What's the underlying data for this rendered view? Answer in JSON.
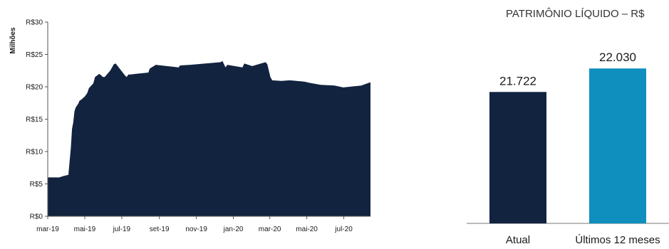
{
  "chart_data": [
    {
      "type": "area",
      "ylabel": "Milhões",
      "ylim": [
        0,
        30
      ],
      "y_ticks": [
        0,
        5,
        10,
        15,
        20,
        25,
        30
      ],
      "y_tick_labels": [
        "R$0",
        "R$5",
        "R$10",
        "R$15",
        "R$20",
        "R$25",
        "R$30"
      ],
      "x_ticks": [
        "2019-03-01",
        "2019-05-01",
        "2019-07-01",
        "2019-09-01",
        "2019-11-01",
        "2020-01-01",
        "2020-03-01",
        "2020-05-01",
        "2020-07-01"
      ],
      "x_tick_labels": [
        "mar-19",
        "mai-19",
        "jul-19",
        "set-19",
        "nov-19",
        "jan-20",
        "mar-20",
        "mai-20",
        "jul-20"
      ],
      "xlim": [
        "2019-03-01",
        "2020-08-14"
      ],
      "color": "#12233f",
      "grid": false,
      "series": [
        {
          "x": [
            "2019-03-01",
            "2019-03-20",
            "2019-03-26",
            "2019-04-04",
            "2019-04-06",
            "2019-04-08",
            "2019-04-10",
            "2019-04-12",
            "2019-04-13",
            "2019-04-14",
            "2019-04-16",
            "2019-04-19",
            "2019-04-21",
            "2019-04-22",
            "2019-04-25",
            "2019-05-01",
            "2019-05-05",
            "2019-05-08",
            "2019-05-15",
            "2019-05-18",
            "2019-05-25",
            "2019-05-31",
            "2019-06-03",
            "2019-06-12",
            "2019-06-18",
            "2019-06-21",
            "2019-07-06",
            "2019-07-09",
            "2019-07-12",
            "2019-07-15",
            "2019-07-25",
            "2019-08-14",
            "2019-08-16",
            "2019-08-26",
            "2019-10-03",
            "2019-10-05",
            "2019-10-22",
            "2019-12-11",
            "2019-12-14",
            "2019-12-19",
            "2019-12-22",
            "2020-01-16",
            "2020-01-19",
            "2020-02-01",
            "2020-02-23",
            "2020-02-26",
            "2020-03-02",
            "2020-03-05",
            "2020-03-20",
            "2020-04-03",
            "2020-04-27",
            "2020-05-06",
            "2020-05-24",
            "2020-06-16",
            "2020-06-30",
            "2020-07-30",
            "2020-08-14"
          ],
          "y": [
            6.0,
            6.0,
            6.2,
            6.4,
            8.5,
            10.5,
            13.5,
            14.5,
            15.3,
            16.2,
            16.8,
            17.2,
            17.5,
            17.8,
            18.0,
            18.5,
            19.0,
            19.8,
            20.5,
            21.5,
            22.0,
            21.5,
            21.5,
            22.5,
            23.5,
            23.6,
            21.8,
            21.5,
            21.9,
            21.9,
            22.0,
            22.2,
            22.8,
            23.4,
            23.0,
            23.3,
            23.4,
            23.8,
            24.0,
            23.0,
            23.4,
            23.0,
            23.6,
            23.2,
            23.8,
            23.5,
            21.5,
            21.0,
            20.9,
            21.0,
            20.8,
            20.6,
            20.3,
            20.2,
            19.9,
            20.2,
            20.7
          ]
        }
      ]
    },
    {
      "type": "bar",
      "title": "PATRIMÔNIO LÍQUIDO – R$",
      "categories": [
        "Atual",
        "Últimos 12 meses"
      ],
      "values": [
        21722,
        22030
      ],
      "value_labels": [
        "21.722",
        "22.030"
      ],
      "colors": [
        "#12233f",
        "#0f8fbd"
      ]
    }
  ]
}
